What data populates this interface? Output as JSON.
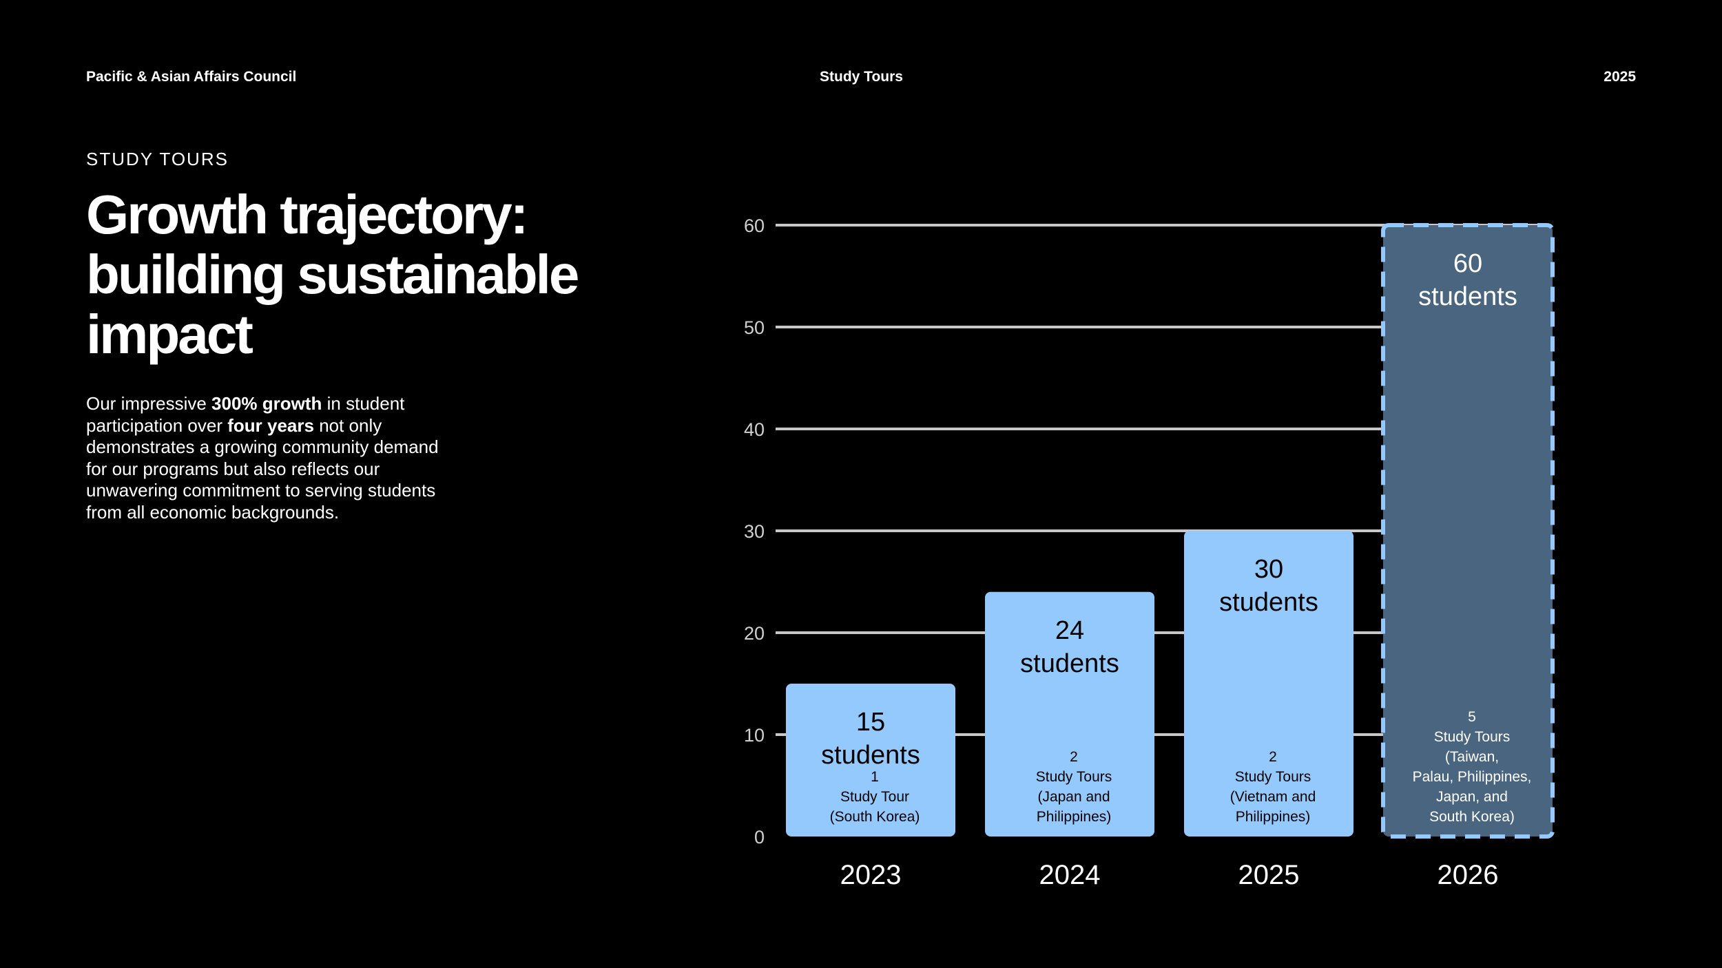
{
  "header": {
    "org": "Pacific & Asian Affairs Council",
    "section": "Study Tours",
    "year": "2025"
  },
  "kicker": "STUDY TOURS",
  "title_lines": [
    "Growth trajectory:",
    "building sustainable",
    "impact"
  ],
  "body": {
    "p1": "Our impressive ",
    "b1": "300% growth",
    "p2": " in student participation over ",
    "b2": "four years",
    "p3": " not only demonstrates a growing community demand for our programs but also reflects our unwavering commitment to serving students from all economic backgrounds."
  },
  "colors": {
    "background": "#000000",
    "bar": "#93c9fd",
    "bar_projected": "#4a6580",
    "projected_border": "#93c9fd",
    "gridline": "#c8c8c8"
  },
  "chart_data": {
    "type": "bar",
    "categories": [
      "2023",
      "2024",
      "2025",
      "2026"
    ],
    "values": [
      15,
      24,
      30,
      60
    ],
    "value_labels": [
      [
        "15",
        "students"
      ],
      [
        "24",
        "students"
      ],
      [
        "30",
        "students"
      ],
      [
        "60",
        "students"
      ]
    ],
    "notes": [
      [
        "1",
        "Study Tour",
        "(South Korea)"
      ],
      [
        "2",
        "Study Tours",
        "(Japan and",
        "Philippines)"
      ],
      [
        "2",
        "Study Tours",
        "(Vietnam and",
        "Philippines)"
      ],
      [
        "5",
        "Study Tours",
        "(Taiwan,",
        "Palau, Philippines,",
        "Japan, and",
        "South Korea)"
      ]
    ],
    "projected": [
      false,
      false,
      false,
      true
    ],
    "ylim": [
      0,
      60
    ],
    "yticks": [
      0,
      10,
      20,
      30,
      40,
      50,
      60
    ],
    "grid": true,
    "title": "",
    "xlabel": "",
    "ylabel": ""
  }
}
